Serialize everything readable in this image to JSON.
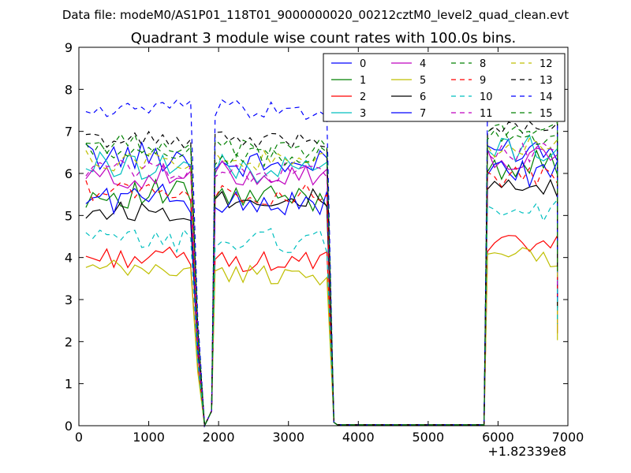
{
  "header": {
    "data_file": "Data file: modeM0/AS1P01_118T01_9000000020_00212cztM0_level2_quad_clean.evt"
  },
  "chart_data": {
    "type": "line",
    "title": "Quadrant 3 module wise count rates with 100.0s bins.",
    "xlabel": "",
    "ylabel": "",
    "x_offset_label": "+1.82339e8",
    "xlim": [
      0,
      7000
    ],
    "ylim": [
      0,
      9
    ],
    "xticks": [
      0,
      1000,
      2000,
      3000,
      4000,
      5000,
      6000,
      7000
    ],
    "yticks": [
      0,
      1,
      2,
      3,
      4,
      5,
      6,
      7,
      8,
      9
    ],
    "grid": false,
    "legend_position": "top-right",
    "segments": [
      {
        "x_start": 100,
        "x_end": 1600,
        "count": 16
      },
      {
        "x_start": 1700,
        "x_end": 1900,
        "count": 3
      },
      {
        "x_start": 1950,
        "x_end": 3550,
        "count": 17
      },
      {
        "x_start": 3600,
        "x_end": 5800,
        "count": 3
      },
      {
        "x_start": 5850,
        "x_end": 6850,
        "count": 11
      }
    ],
    "transition": {
      "x_low": [
        1700,
        1800,
        1900
      ],
      "drop_to": [
        1.0,
        0.0,
        0.3
      ],
      "x_gap": [
        3650,
        5800
      ],
      "gap_value": 0.05
    },
    "series": [
      {
        "name": "0",
        "color": "#0000ff",
        "dash": "solid",
        "base1": 6.4,
        "base2": 6.2,
        "base3": 6.6,
        "amp": 0.35
      },
      {
        "name": "1",
        "color": "#008000",
        "dash": "solid",
        "base1": 5.5,
        "base2": 5.4,
        "base3": 6.2,
        "amp": 0.35
      },
      {
        "name": "2",
        "color": "#ff0000",
        "dash": "solid",
        "base1": 4.0,
        "base2": 3.9,
        "base3": 4.3,
        "amp": 0.25
      },
      {
        "name": "3",
        "color": "#00bfbf",
        "dash": "solid",
        "base1": 6.2,
        "base2": 6.1,
        "base3": 6.6,
        "amp": 0.35
      },
      {
        "name": "4",
        "color": "#bf00bf",
        "dash": "solid",
        "base1": 5.9,
        "base2": 6.0,
        "base3": 6.3,
        "amp": 0.3
      },
      {
        "name": "5",
        "color": "#bfbf00",
        "dash": "solid",
        "base1": 3.7,
        "base2": 3.6,
        "base3": 4.0,
        "amp": 0.25
      },
      {
        "name": "6",
        "color": "#000000",
        "dash": "solid",
        "base1": 5.1,
        "base2": 5.4,
        "base3": 5.6,
        "amp": 0.25
      },
      {
        "name": "7",
        "color": "#0000ff",
        "dash": "solid",
        "base1": 5.4,
        "base2": 5.3,
        "base3": 6.0,
        "amp": 0.35
      },
      {
        "name": "8",
        "color": "#008000",
        "dash": "dashed",
        "base1": 6.7,
        "base2": 6.6,
        "base3": 7.0,
        "amp": 0.25
      },
      {
        "name": "9",
        "color": "#ff0000",
        "dash": "dashed",
        "base1": 5.6,
        "base2": 5.5,
        "base3": 5.9,
        "amp": 0.25
      },
      {
        "name": "10",
        "color": "#00bfbf",
        "dash": "dashed",
        "base1": 4.4,
        "base2": 4.4,
        "base3": 5.1,
        "amp": 0.3
      },
      {
        "name": "11",
        "color": "#bf00bf",
        "dash": "dashed",
        "base1": 6.1,
        "base2": 6.0,
        "base3": 6.5,
        "amp": 0.25
      },
      {
        "name": "12",
        "color": "#bfbf00",
        "dash": "dashed",
        "base1": 6.3,
        "base2": 6.3,
        "base3": 6.6,
        "amp": 0.25
      },
      {
        "name": "13",
        "color": "#000000",
        "dash": "dashed",
        "base1": 6.8,
        "base2": 6.8,
        "base3": 7.1,
        "amp": 0.2
      },
      {
        "name": "14",
        "color": "#0000ff",
        "dash": "dashed",
        "base1": 7.5,
        "base2": 7.5,
        "base3": 7.6,
        "amp": 0.25
      },
      {
        "name": "15",
        "color": "#008000",
        "dash": "dashed",
        "base1": 6.5,
        "base2": 6.4,
        "base3": 6.9,
        "amp": 0.25
      }
    ]
  }
}
